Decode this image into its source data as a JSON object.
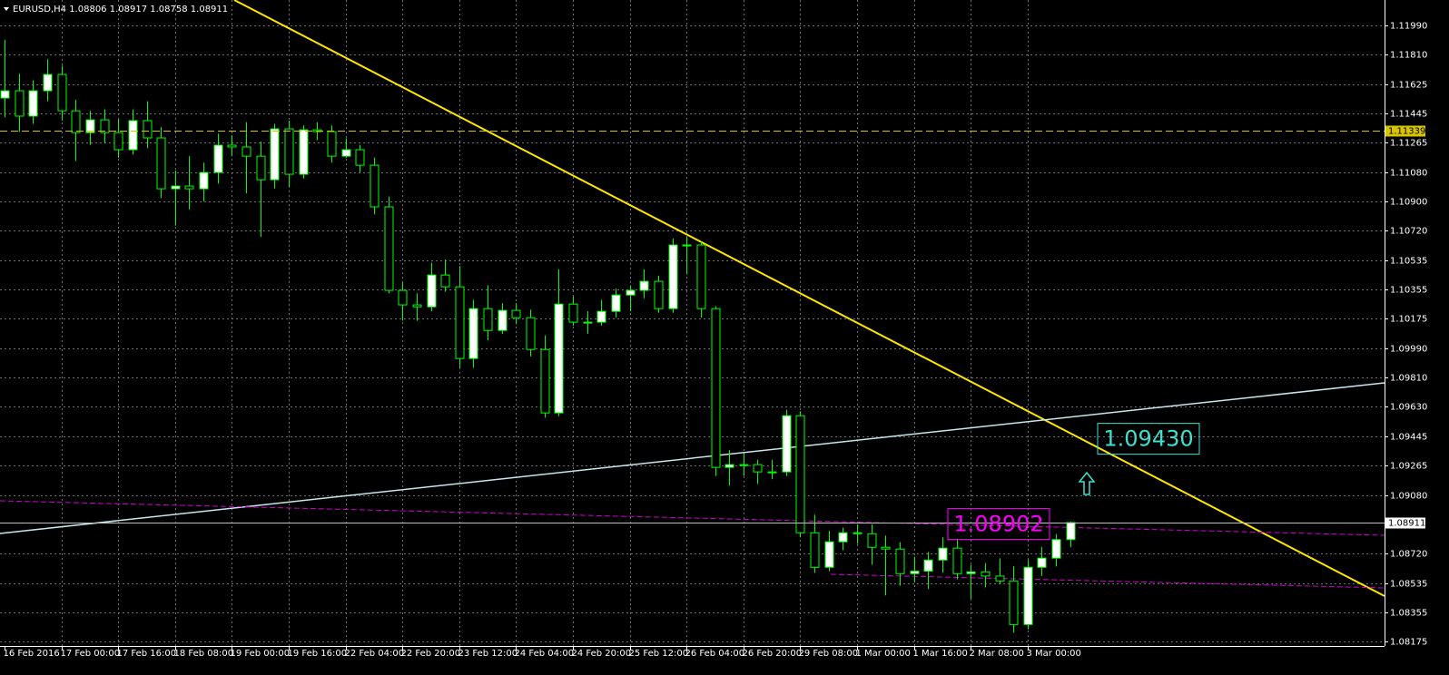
{
  "chart_data": {
    "type": "candlestick",
    "title": "EURUSD,H4  1.08806 1.08917 1.08758 1.08911",
    "categories": [
      "16 Feb 2016",
      null,
      null,
      null,
      "17 Feb 00:00",
      null,
      null,
      null,
      "17 Feb 16:00",
      null,
      null,
      null,
      "18 Feb 08:00",
      null,
      null,
      null,
      "19 Feb 00:00",
      null,
      null,
      null,
      "19 Feb 16:00",
      null,
      null,
      null,
      "22 Feb 04:00",
      null,
      null,
      null,
      "22 Feb 20:00",
      null,
      null,
      null,
      "23 Feb 12:00",
      null,
      null,
      null,
      "24 Feb 04:00",
      null,
      null,
      null,
      "24 Feb 20:00",
      null,
      null,
      null,
      "25 Feb 12:00",
      null,
      null,
      null,
      "26 Feb 04:00",
      null,
      null,
      null,
      "26 Feb 20:00",
      null,
      null,
      null,
      "29 Feb 08:00",
      null,
      null,
      null,
      "1 Mar 00:00",
      null,
      null,
      null,
      "1 Mar 16:00",
      null,
      null,
      null,
      "2 Mar 08:00",
      null,
      null,
      null,
      "3 Mar 00:00",
      null,
      null,
      null
    ],
    "open": [
      1.1154,
      1.11585,
      1.11428,
      1.11585,
      1.11686,
      1.11461,
      1.11326,
      1.11405,
      1.11326,
      1.1122,
      1.114,
      1.11293,
      1.10978,
      1.10995,
      1.10978,
      1.11079,
      1.11248,
      1.11237,
      1.1118,
      1.11034,
      1.11349,
      1.11068,
      1.11343,
      1.11332,
      1.1118,
      1.1122,
      1.11124,
      1.10866,
      1.10349,
      1.10259,
      1.10247,
      1.10444,
      1.10371,
      1.09927,
      1.10236,
      1.10101,
      1.10225,
      1.1018,
      1.09983,
      1.0959,
      1.10264,
      1.10152,
      1.10152,
      1.10219,
      1.1032,
      1.10349,
      1.10405,
      1.10236,
      1.1063,
      1.1063,
      1.10236,
      1.09253,
      1.0927,
      1.0927,
      1.09225,
      1.09225,
      1.09573,
      1.08848,
      1.08634,
      1.08792,
      1.08848,
      1.08842,
      1.08758,
      1.08747,
      1.08595,
      1.0861,
      1.08679,
      1.08753,
      1.08595,
      1.08606,
      1.0858,
      1.0855,
      1.0828,
      1.08634,
      1.08691,
      1.08806
    ],
    "high": [
      1.119,
      1.1169,
      1.1165,
      1.1178,
      1.1174,
      1.1153,
      1.1146,
      1.1147,
      1.1141,
      1.1147,
      1.1152,
      1.1136,
      1.1109,
      1.1118,
      1.1114,
      1.1132,
      1.1131,
      1.1139,
      1.1127,
      1.1138,
      1.114,
      1.1137,
      1.1139,
      1.1137,
      1.1129,
      1.1125,
      1.1117,
      1.1093,
      1.104,
      1.1033,
      1.1052,
      1.1054,
      1.105,
      1.1029,
      1.1038,
      1.1027,
      1.1027,
      1.1023,
      1.1007,
      1.1048,
      1.1031,
      1.1022,
      1.1029,
      1.1036,
      1.1038,
      1.1048,
      1.1044,
      1.1067,
      1.1068,
      1.1065,
      1.1025,
      1.0936,
      1.0934,
      1.093,
      1.093,
      1.0961,
      1.096,
      1.0896,
      1.0886,
      1.0888,
      1.089,
      1.089,
      1.0883,
      1.0879,
      1.087,
      1.0873,
      1.0882,
      1.0881,
      1.0865,
      1.0866,
      1.0869,
      1.0864,
      1.0868,
      1.0876,
      1.0884,
      1.08917
    ],
    "low": [
      1.1142,
      1.1133,
      1.1138,
      1.1152,
      1.114,
      1.1115,
      1.1125,
      1.1126,
      1.1117,
      1.1119,
      1.1123,
      1.1092,
      1.1075,
      1.1085,
      1.109,
      1.1101,
      1.1118,
      1.1095,
      1.1068,
      1.1098,
      1.1099,
      1.1104,
      1.1128,
      1.1114,
      1.1117,
      1.1108,
      1.1082,
      1.1033,
      1.1016,
      1.1016,
      1.1022,
      1.1034,
      1.0987,
      1.0987,
      1.1004,
      1.1008,
      1.1014,
      1.0994,
      1.0956,
      1.0957,
      1.1013,
      1.1008,
      1.1013,
      1.1018,
      1.1022,
      1.103,
      1.1021,
      1.1021,
      1.1045,
      1.1018,
      1.092,
      1.0914,
      1.092,
      1.0915,
      1.0918,
      1.092,
      1.0882,
      1.086,
      1.0861,
      1.0874,
      1.0878,
      1.0865,
      1.0846,
      1.0852,
      1.0854,
      1.085,
      1.086,
      1.0856,
      1.0844,
      1.0851,
      1.0853,
      1.0823,
      1.0825,
      1.0858,
      1.0864,
      1.08758
    ],
    "close": [
      1.11585,
      1.11428,
      1.11585,
      1.11686,
      1.11461,
      1.11326,
      1.11405,
      1.11326,
      1.1122,
      1.114,
      1.11293,
      1.10978,
      1.10995,
      1.10978,
      1.11079,
      1.11248,
      1.11237,
      1.1118,
      1.11034,
      1.11349,
      1.11068,
      1.11343,
      1.11332,
      1.1118,
      1.1122,
      1.11124,
      1.10866,
      1.10349,
      1.10259,
      1.10247,
      1.10444,
      1.10371,
      1.09927,
      1.10236,
      1.10101,
      1.10225,
      1.1018,
      1.09983,
      1.0959,
      1.10264,
      1.10152,
      1.10152,
      1.10219,
      1.1032,
      1.10349,
      1.10405,
      1.10236,
      1.1063,
      1.1063,
      1.10236,
      1.09253,
      1.0927,
      1.0927,
      1.09225,
      1.09225,
      1.09573,
      1.08848,
      1.08634,
      1.08792,
      1.08848,
      1.08842,
      1.08758,
      1.08747,
      1.08595,
      1.0861,
      1.08679,
      1.08753,
      1.08595,
      1.08606,
      1.0858,
      1.0855,
      1.0828,
      1.08634,
      1.08691,
      1.08806,
      1.08911
    ],
    "bull_color": "#ffffff",
    "bear_color": "#000000",
    "outline_color": "#00ff00",
    "ylim": [
      1.08147,
      1.12147
    ],
    "yticks": [
      {
        "value": 1.1199,
        "label": "1.11990"
      },
      {
        "value": 1.1181,
        "label": "1.11810"
      },
      {
        "value": 1.11625,
        "label": "1.11625"
      },
      {
        "value": 1.11445,
        "label": "1.11445"
      },
      {
        "value": 1.11265,
        "label": "1.11265"
      },
      {
        "value": 1.1108,
        "label": "1.11080"
      },
      {
        "value": 1.109,
        "label": "1.10900"
      },
      {
        "value": 1.1072,
        "label": "1.10720"
      },
      {
        "value": 1.10535,
        "label": "1.10535"
      },
      {
        "value": 1.10355,
        "label": "1.10355"
      },
      {
        "value": 1.10175,
        "label": "1.10175"
      },
      {
        "value": 1.0999,
        "label": "1.09990"
      },
      {
        "value": 1.0981,
        "label": "1.09810"
      },
      {
        "value": 1.0963,
        "label": "1.09630"
      },
      {
        "value": 1.09445,
        "label": "1.09445"
      },
      {
        "value": 1.09265,
        "label": "1.09265"
      },
      {
        "value": 1.0908,
        "label": "1.09080"
      },
      {
        "value": 1.0872,
        "label": "1.08720"
      },
      {
        "value": 1.08535,
        "label": "1.08535"
      },
      {
        "value": 1.08355,
        "label": "1.08355"
      },
      {
        "value": 1.08175,
        "label": "1.08175"
      }
    ],
    "grid": true,
    "hlines": [
      {
        "value": 1.11339,
        "color": "#d8c400"
      },
      {
        "value": 1.08911,
        "color": "#c0c0c0"
      }
    ],
    "annotations": [
      {
        "value": 1.0943,
        "label": "1.09430",
        "color": "#40e0d0"
      },
      {
        "value": 1.08902,
        "label": "1.08902",
        "color": "#ff00ff"
      }
    ]
  }
}
